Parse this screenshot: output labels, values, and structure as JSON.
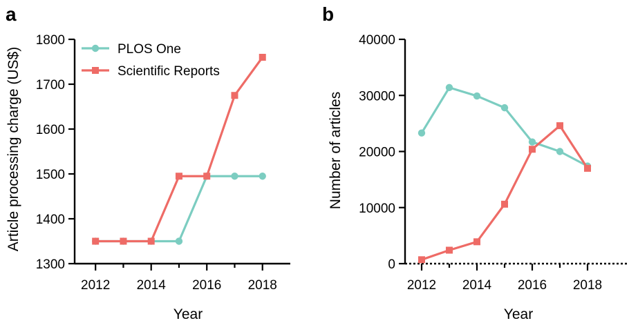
{
  "chart_data": [
    {
      "type": "line",
      "panel": "a",
      "x": [
        2012,
        2013,
        2014,
        2015,
        2016,
        2017,
        2018
      ],
      "series": [
        {
          "name": "PLOS One",
          "color": "#7ccdc1",
          "marker": "circle",
          "values": [
            1350,
            1350,
            1350,
            1350,
            1495,
            1495,
            1495
          ]
        },
        {
          "name": "Scientific Reports",
          "color": "#ee6b66",
          "marker": "square",
          "values": [
            1350,
            1350,
            1350,
            1495,
            1495,
            1675,
            1760
          ]
        }
      ],
      "xlabel": "Year",
      "ylabel": "Article processing charge (US$)",
      "xticks": [
        "2012",
        "2014",
        "2016",
        "2018"
      ],
      "yticks": [
        "1300",
        "1400",
        "1500",
        "1600",
        "1700",
        "1800"
      ],
      "xlim": [
        2011.25,
        2019
      ],
      "ylim": [
        1300,
        1800
      ],
      "legend_position": "top-left",
      "grid": false
    },
    {
      "type": "line",
      "panel": "b",
      "x": [
        2012,
        2013,
        2014,
        2015,
        2016,
        2017,
        2018
      ],
      "series": [
        {
          "name": "PLOS One",
          "color": "#7ccdc1",
          "marker": "circle",
          "values": [
            23300,
            31400,
            29900,
            27800,
            21700,
            20000,
            17400
          ]
        },
        {
          "name": "Scientific Reports",
          "color": "#ee6b66",
          "marker": "square",
          "values": [
            700,
            2400,
            3900,
            10600,
            20400,
            24600,
            17000
          ]
        }
      ],
      "xlabel": "Year",
      "ylabel": "Number of articles",
      "xticks": [
        "2012",
        "2014",
        "2016",
        "2018"
      ],
      "yticks": [
        "0",
        "10000",
        "20000",
        "30000",
        "40000"
      ],
      "xlim": [
        2011.4,
        2019.5
      ],
      "ylim": [
        0,
        40000
      ],
      "zero_line": "dotted",
      "grid": false
    }
  ]
}
